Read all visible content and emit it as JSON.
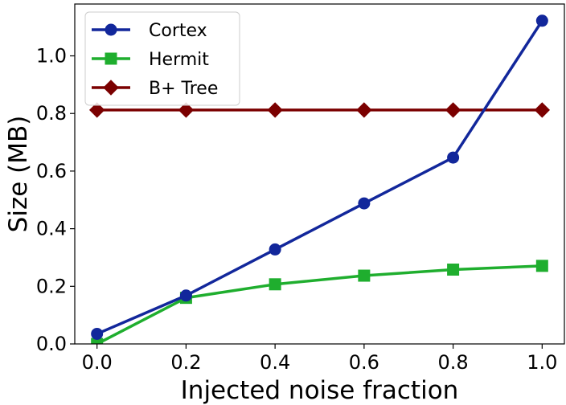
{
  "chart_data": {
    "type": "line",
    "title": "",
    "xlabel": "Injected noise fraction",
    "ylabel": "Size (MB)",
    "xlim": [
      -0.05,
      1.05
    ],
    "ylim": [
      0.0,
      1.18
    ],
    "xticks": [
      "0.0",
      "0.2",
      "0.4",
      "0.6",
      "0.8",
      "1.0"
    ],
    "yticks": [
      "0.0",
      "0.2",
      "0.4",
      "0.6",
      "0.8",
      "1.0"
    ],
    "x": [
      0.0,
      0.2,
      0.4,
      0.6,
      0.8,
      1.0
    ],
    "grid": false,
    "legend_position": "top-left",
    "series": [
      {
        "name": "Cortex",
        "marker": "circle",
        "color": "#12279b",
        "values": [
          0.035,
          0.168,
          0.328,
          0.488,
          0.647,
          1.122
        ]
      },
      {
        "name": "Hermit",
        "marker": "square",
        "color": "#1fae2e",
        "values": [
          0.0,
          0.16,
          0.207,
          0.237,
          0.258,
          0.271
        ]
      },
      {
        "name": "B+ Tree",
        "marker": "diamond",
        "color": "#7b0000",
        "values": [
          0.812,
          0.812,
          0.812,
          0.812,
          0.812,
          0.812
        ]
      }
    ]
  }
}
